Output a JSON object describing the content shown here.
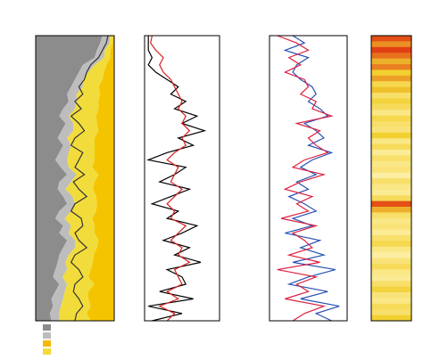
{
  "chart_data": [
    {
      "type": "stacked_area",
      "xlim": [
        0,
        1
      ],
      "series": [
        {
          "color": "#8c8c8c",
          "values": [
            0.85,
            0.82,
            0.78,
            0.75,
            0.6,
            0.55,
            0.5,
            0.45,
            0.4,
            0.42,
            0.35,
            0.3,
            0.38,
            0.33,
            0.28,
            0.35,
            0.3,
            0.25,
            0.32,
            0.4,
            0.3,
            0.28,
            0.35,
            0.4,
            0.3,
            0.25,
            0.35,
            0.3,
            0.4,
            0.35,
            0.3,
            0.28,
            0.25,
            0.22,
            0.3,
            0.25,
            0.2,
            0.22,
            0.18,
            0.2
          ]
        },
        {
          "color": "#bdbdbd",
          "values": [
            0.1,
            0.12,
            0.1,
            0.12,
            0.15,
            0.12,
            0.1,
            0.15,
            0.12,
            0.1,
            0.15,
            0.12,
            0.1,
            0.15,
            0.12,
            0.1,
            0.12,
            0.15,
            0.1,
            0.12,
            0.15,
            0.1,
            0.12,
            0.1,
            0.15,
            0.12,
            0.1,
            0.12,
            0.1,
            0.15,
            0.12,
            0.1,
            0.15,
            0.12,
            0.1,
            0.12,
            0.15,
            0.1,
            0.12,
            0.1
          ]
        },
        {
          "color": "#f2dc3c",
          "values": [
            0.03,
            0.04,
            0.07,
            0.08,
            0.15,
            0.2,
            0.25,
            0.2,
            0.3,
            0.28,
            0.3,
            0.35,
            0.3,
            0.32,
            0.35,
            0.3,
            0.33,
            0.35,
            0.3,
            0.28,
            0.3,
            0.35,
            0.3,
            0.28,
            0.32,
            0.35,
            0.3,
            0.33,
            0.3,
            0.28,
            0.32,
            0.35,
            0.3,
            0.33,
            0.35,
            0.3,
            0.32,
            0.38,
            0.35,
            0.4
          ]
        },
        {
          "color": "#f5c400",
          "values": [
            0.02,
            0.02,
            0.05,
            0.05,
            0.1,
            0.13,
            0.15,
            0.2,
            0.18,
            0.2,
            0.2,
            0.23,
            0.22,
            0.2,
            0.25,
            0.25,
            0.25,
            0.25,
            0.28,
            0.2,
            0.25,
            0.27,
            0.23,
            0.22,
            0.23,
            0.28,
            0.25,
            0.25,
            0.2,
            0.22,
            0.26,
            0.27,
            0.3,
            0.33,
            0.25,
            0.33,
            0.33,
            0.3,
            0.35,
            0.3
          ]
        }
      ],
      "lines": [
        {
          "color": "#333333",
          "values": [
            0.92,
            0.9,
            0.85,
            0.8,
            0.7,
            0.65,
            0.62,
            0.55,
            0.6,
            0.5,
            0.58,
            0.45,
            0.55,
            0.62,
            0.5,
            0.45,
            0.6,
            0.55,
            0.5,
            0.62,
            0.48,
            0.55,
            0.65,
            0.5,
            0.45,
            0.58,
            0.6,
            0.5,
            0.55,
            0.65,
            0.5,
            0.45,
            0.55,
            0.6,
            0.5,
            0.48,
            0.55,
            0.6,
            0.52,
            0.5
          ]
        }
      ]
    },
    {
      "type": "line",
      "xlim": [
        0,
        1
      ],
      "series": [
        {
          "color": "#000000",
          "values": [
            0.05,
            0.05,
            0.05,
            0.1,
            0.05,
            0.15,
            0.3,
            0.45,
            0.35,
            0.55,
            0.4,
            0.7,
            0.5,
            0.8,
            0.45,
            0.65,
            0.3,
            0.05,
            0.55,
            0.4,
            0.2,
            0.6,
            0.35,
            0.1,
            0.45,
            0.3,
            0.7,
            0.5,
            0.25,
            0.6,
            0.4,
            0.75,
            0.3,
            0.5,
            0.55,
            0.2,
            0.65,
            0.05,
            0.5,
            0.1
          ]
        },
        {
          "color": "#d42020",
          "values": [
            0.1,
            0.08,
            0.15,
            0.25,
            0.2,
            0.25,
            0.35,
            0.4,
            0.45,
            0.5,
            0.45,
            0.55,
            0.5,
            0.6,
            0.5,
            0.55,
            0.4,
            0.3,
            0.45,
            0.4,
            0.35,
            0.5,
            0.4,
            0.3,
            0.4,
            0.35,
            0.55,
            0.45,
            0.35,
            0.5,
            0.45,
            0.6,
            0.4,
            0.45,
            0.5,
            0.3,
            0.45,
            0.2,
            0.4,
            0.3
          ]
        }
      ]
    },
    {
      "type": "line",
      "xlim": [
        0,
        1
      ],
      "series": [
        {
          "color": "#2850b4",
          "values": [
            0.3,
            0.45,
            0.2,
            0.5,
            0.35,
            0.3,
            0.4,
            0.55,
            0.6,
            0.5,
            0.65,
            0.75,
            0.45,
            0.6,
            0.7,
            0.5,
            0.8,
            0.55,
            0.4,
            0.6,
            0.35,
            0.5,
            0.25,
            0.45,
            0.6,
            0.3,
            0.55,
            0.2,
            0.65,
            0.4,
            0.7,
            0.3,
            0.85,
            0.5,
            0.25,
            0.75,
            0.4,
            0.9,
            0.6,
            0.8
          ]
        },
        {
          "color": "#dc2040",
          "values": [
            0.1,
            0.35,
            0.5,
            0.25,
            0.4,
            0.2,
            0.45,
            0.5,
            0.4,
            0.6,
            0.55,
            0.8,
            0.35,
            0.65,
            0.5,
            0.6,
            0.75,
            0.45,
            0.3,
            0.7,
            0.4,
            0.2,
            0.55,
            0.35,
            0.5,
            0.15,
            0.6,
            0.3,
            0.45,
            0.55,
            0.25,
            0.65,
            0.1,
            0.6,
            0.35,
            0.5,
            0.2,
            0.7,
            0.45,
            0.3
          ]
        }
      ]
    },
    {
      "type": "heatmap",
      "colorscale": [
        "#fff6c0",
        "#f2d030",
        "#e03010"
      ],
      "values": [
        0.9,
        0.7,
        0.95,
        0.8,
        0.6,
        0.75,
        0.5,
        0.65,
        0.4,
        0.55,
        0.3,
        0.45,
        0.35,
        0.2,
        0.4,
        0.3,
        0.25,
        0.5,
        0.2,
        0.35,
        0.15,
        0.3,
        0.2,
        0.25,
        0.1,
        0.3,
        0.2,
        0.15,
        0.35,
        0.9,
        0.6,
        0.3,
        0.2,
        0.25,
        0.15,
        0.3,
        0.4,
        0.2,
        0.1,
        0.25,
        0.35,
        0.2,
        0.15,
        0.3,
        0.45,
        0.25,
        0.2,
        0.35,
        0.3,
        0.5
      ]
    }
  ]
}
